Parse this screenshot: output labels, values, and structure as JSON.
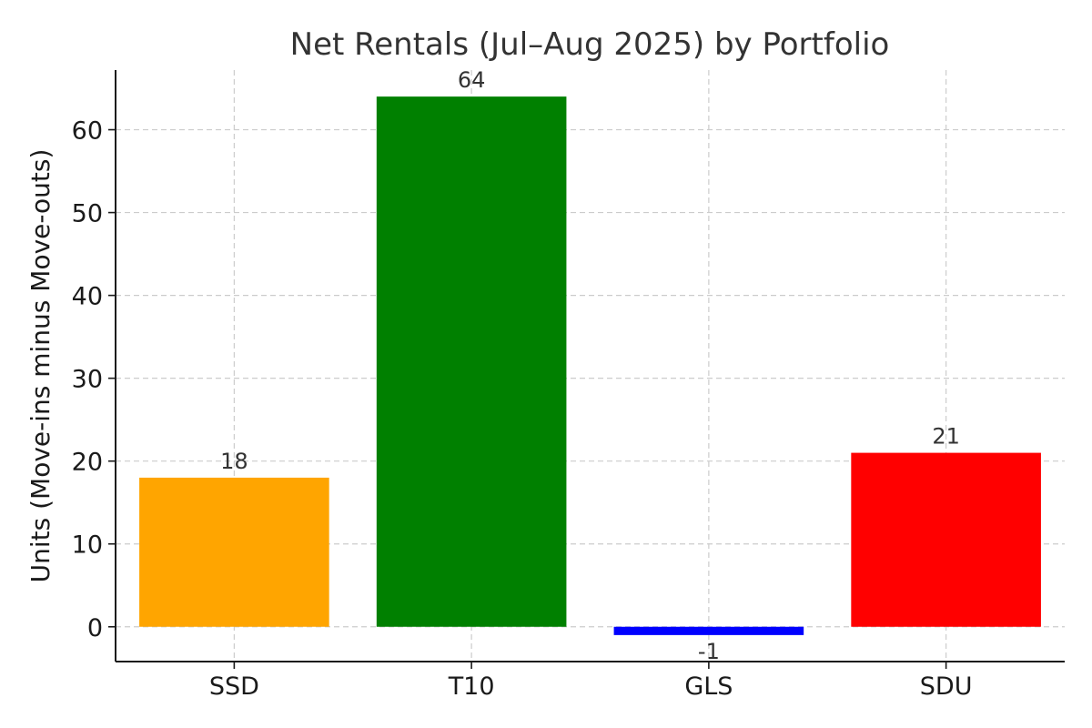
{
  "chart_data": {
    "type": "bar",
    "title": "Net Rentals (Jul–Aug 2025) by Portfolio",
    "xlabel": "",
    "ylabel": "Units (Move-ins minus Move-outs)",
    "categories": [
      "SSD",
      "T10",
      "GLS",
      "SDU"
    ],
    "values": [
      18,
      64,
      -1,
      21
    ],
    "data_labels": [
      "18",
      "64",
      "-1",
      "21"
    ],
    "colors": [
      "#FFA500",
      "#008000",
      "#0000FF",
      "#FF0000"
    ],
    "ylim": [
      -4.2,
      67.2
    ],
    "yticks": [
      0,
      10,
      20,
      30,
      40,
      50,
      60
    ],
    "ytick_labels": [
      "0",
      "10",
      "20",
      "30",
      "40",
      "50",
      "60"
    ],
    "grid": true,
    "legend": "none"
  }
}
